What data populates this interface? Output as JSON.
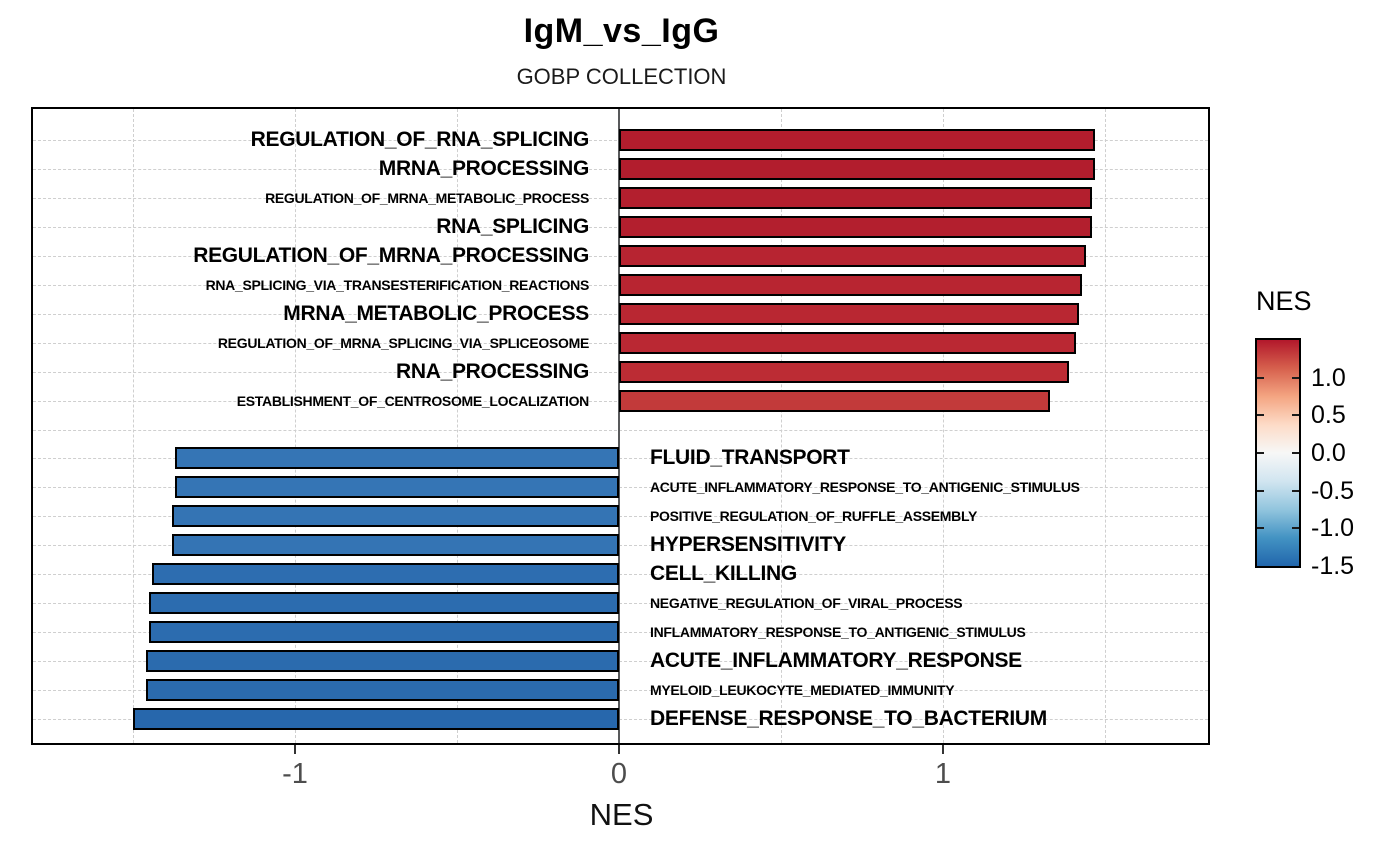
{
  "title": "IgM_vs_IgG",
  "subtitle": "GOBP COLLECTION",
  "chart_data": {
    "type": "bar",
    "orientation": "horizontal",
    "title": "IgM_vs_IgG",
    "subtitle": "GOBP COLLECTION",
    "xlabel": "NES",
    "xlim": [
      -1.81,
      1.82
    ],
    "x_ticks": [
      -1,
      0,
      1
    ],
    "x_tick_labels": [
      "-1",
      "0",
      "1"
    ],
    "x_gridlines": [
      -1.5,
      -1,
      -0.5,
      0.5,
      1,
      1.5
    ],
    "grid": "dashed",
    "gap_after_index": 9,
    "bars": [
      {
        "label": "REGULATION_OF_RNA_SPLICING",
        "value": 1.47,
        "label_size": "large",
        "color": "#B21D2D"
      },
      {
        "label": "MRNA_PROCESSING",
        "value": 1.47,
        "label_size": "large",
        "color": "#B21D2D"
      },
      {
        "label": "REGULATION_OF_MRNA_METABOLIC_PROCESS",
        "value": 1.46,
        "label_size": "small",
        "color": "#B31F2E"
      },
      {
        "label": "RNA_SPLICING",
        "value": 1.46,
        "label_size": "large",
        "color": "#B31F2E"
      },
      {
        "label": "REGULATION_OF_MRNA_PROCESSING",
        "value": 1.44,
        "label_size": "large",
        "color": "#B72431"
      },
      {
        "label": "RNA_SPLICING_VIA_TRANSESTERIFICATION_REACTIONS",
        "value": 1.43,
        "label_size": "small",
        "color": "#B82531"
      },
      {
        "label": "MRNA_METABOLIC_PROCESS",
        "value": 1.42,
        "label_size": "large",
        "color": "#B92732"
      },
      {
        "label": "REGULATION_OF_MRNA_SPLICING_VIA_SPLICEOSOME",
        "value": 1.41,
        "label_size": "small",
        "color": "#BA2833"
      },
      {
        "label": "RNA_PROCESSING",
        "value": 1.39,
        "label_size": "large",
        "color": "#BC2C34"
      },
      {
        "label": "ESTABLISHMENT_OF_CENTROSOME_LOCALIZATION",
        "value": 1.33,
        "label_size": "small",
        "color": "#C23A3A"
      },
      {
        "label": "FLUID_TRANSPORT",
        "value": -1.37,
        "label_size": "large",
        "color": "#3575B5"
      },
      {
        "label": "ACUTE_INFLAMMATORY_RESPONSE_TO_ANTIGENIC_STIMULUS",
        "value": -1.37,
        "label_size": "small",
        "color": "#3575B5"
      },
      {
        "label": "POSITIVE_REGULATION_OF_RUFFLE_ASSEMBLY",
        "value": -1.38,
        "label_size": "small",
        "color": "#3474B4"
      },
      {
        "label": "HYPERSENSITIVITY",
        "value": -1.38,
        "label_size": "large",
        "color": "#3474B4"
      },
      {
        "label": "CELL_KILLING",
        "value": -1.44,
        "label_size": "large",
        "color": "#2D6DB0"
      },
      {
        "label": "NEGATIVE_REGULATION_OF_VIRAL_PROCESS",
        "value": -1.45,
        "label_size": "small",
        "color": "#2C6CAF"
      },
      {
        "label": "INFLAMMATORY_RESPONSE_TO_ANTIGENIC_STIMULUS",
        "value": -1.45,
        "label_size": "small",
        "color": "#2C6CAF"
      },
      {
        "label": "ACUTE_INFLAMMATORY_RESPONSE",
        "value": -1.46,
        "label_size": "large",
        "color": "#2B6BAE"
      },
      {
        "label": "MYELOID_LEUKOCYTE_MEDIATED_IMMUNITY",
        "value": -1.46,
        "label_size": "small",
        "color": "#2B6BAE"
      },
      {
        "label": "DEFENSE_RESPONSE_TO_BACTERIUM",
        "value": -1.5,
        "label_size": "large",
        "color": "#2767AC"
      }
    ],
    "legend": {
      "title": "NES",
      "position": "right",
      "domain": [
        -1.5,
        1.5
      ],
      "tick_values": [
        1.0,
        0.5,
        0.0,
        -0.5,
        -1.0,
        -1.5
      ],
      "tick_labels": [
        "1.0",
        "0.5",
        "0.0",
        "-0.5",
        "-1.0",
        "-1.5"
      ],
      "gradient_stops_top_to_bottom": [
        "#B2182B",
        "#D6604D",
        "#F4A582",
        "#FDDBC7",
        "#F7F7F7",
        "#D1E5F0",
        "#92C5DE",
        "#4393C3",
        "#2166AC"
      ]
    },
    "colors": {
      "positive_max": "#B2182B",
      "negative_min": "#2166AC",
      "bar_border": "#000000",
      "zero_line": "#58595B",
      "gridline": "#CFCFCF",
      "panel_border": "#000000",
      "axis_tick_label": "#4D4D4D"
    }
  }
}
